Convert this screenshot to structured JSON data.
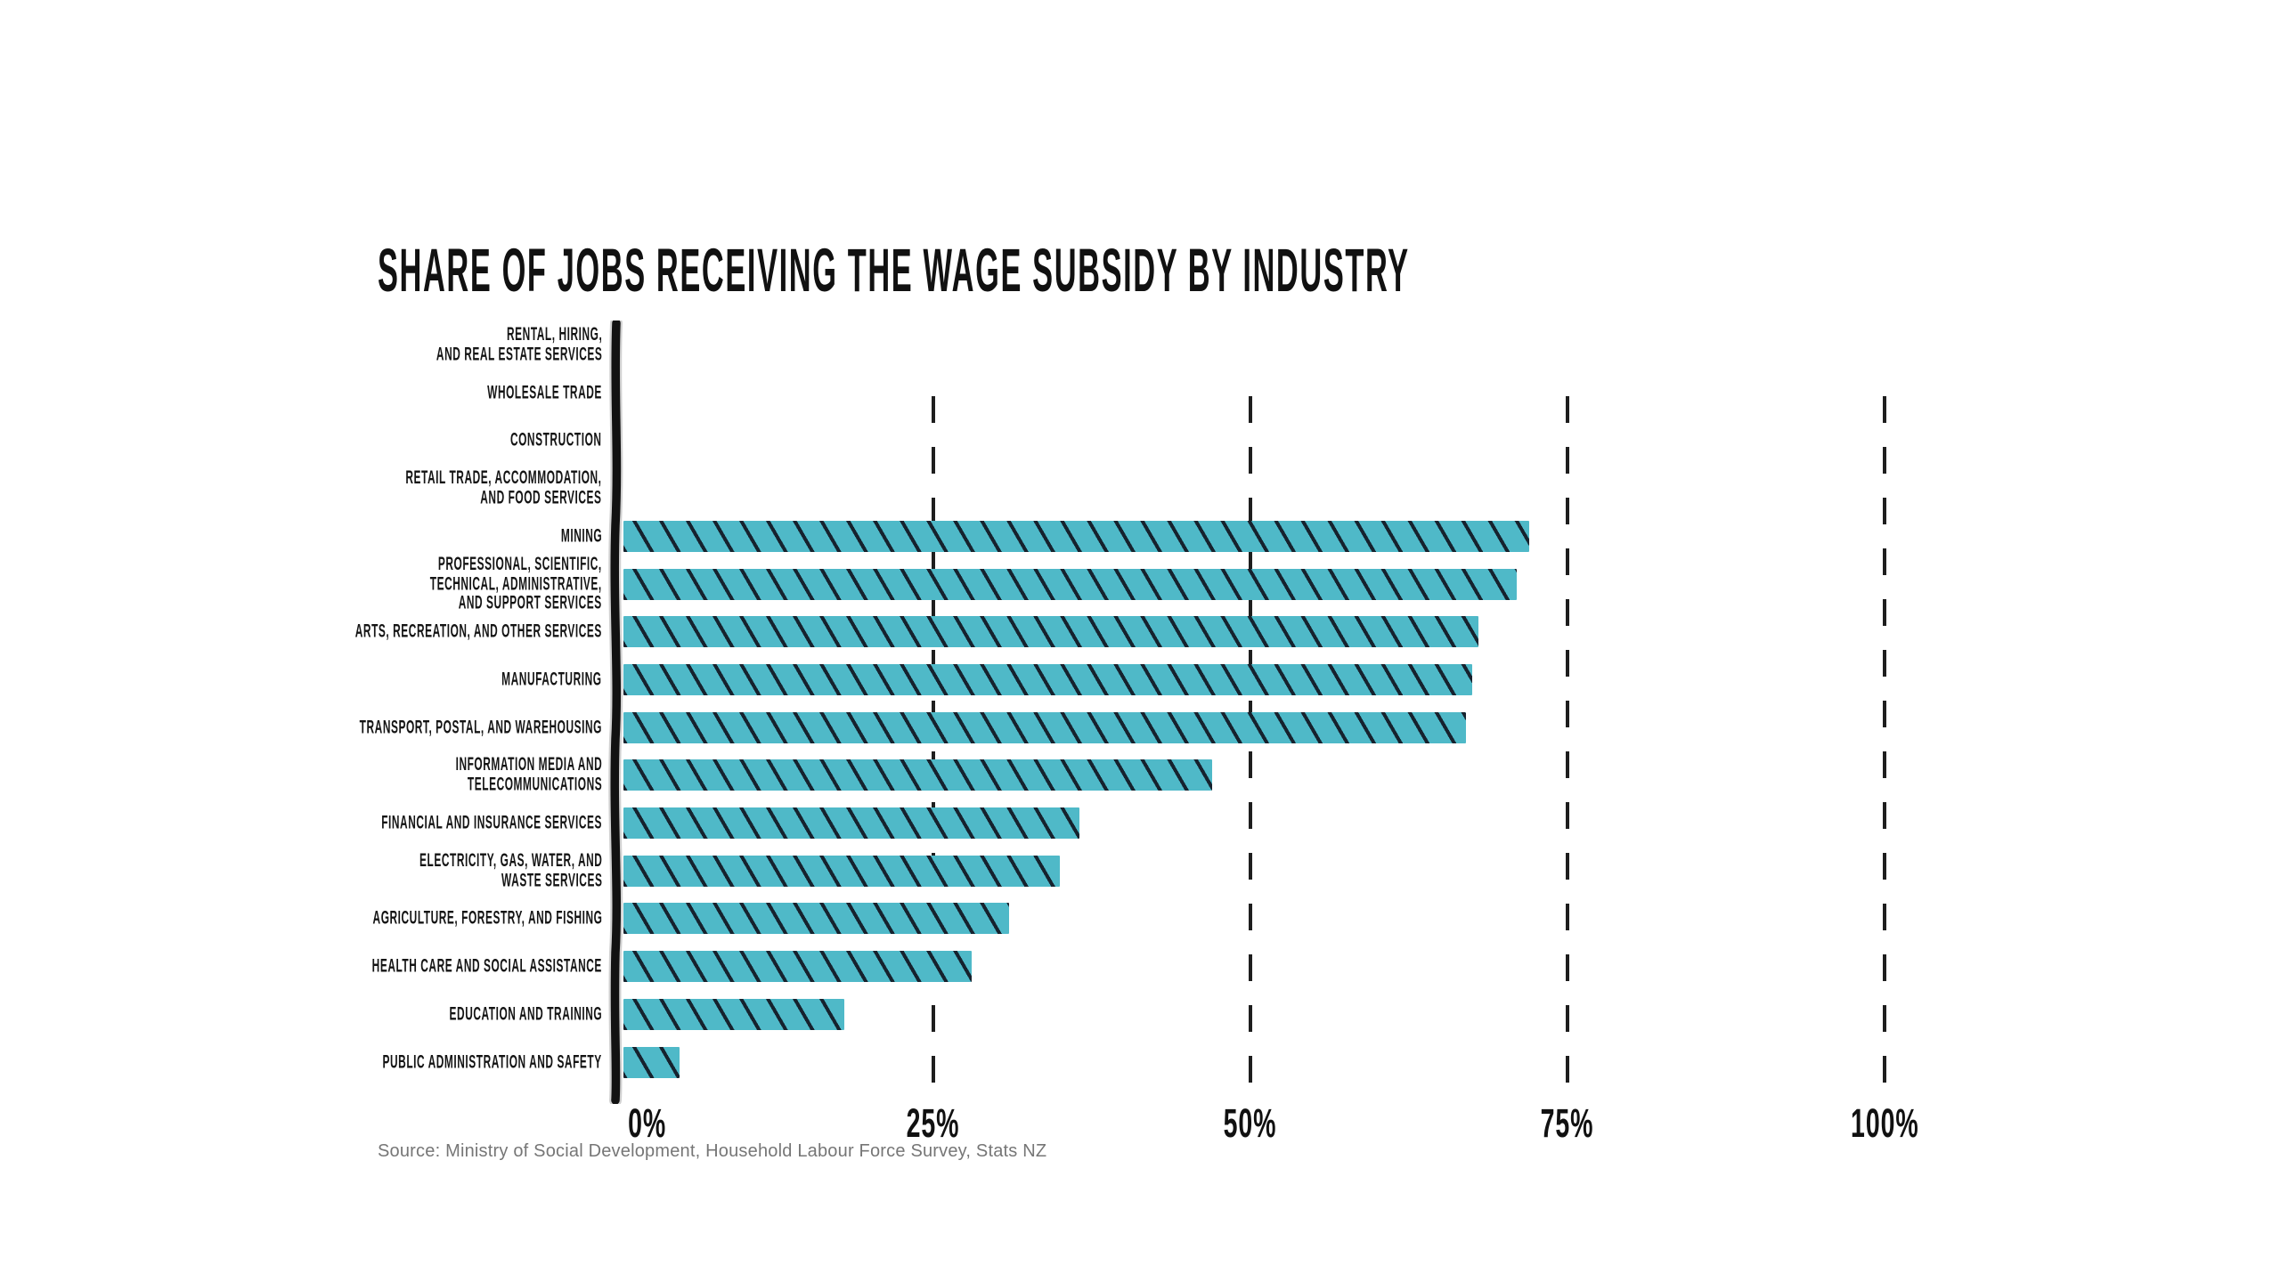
{
  "title": "SHARE OF JOBS RECEIVING THE WAGE SUBSIDY BY INDUSTRY",
  "source_note": "Source: Ministry of Social Development, Household Labour Force Survey, Stats NZ",
  "colors": {
    "background": "#ffffff",
    "bar_fill": "#4fb9c8",
    "bar_hatch": "#16222e",
    "axis_line": "#141414",
    "gridline": "#1e1e1e",
    "label_text": "#141414",
    "source_text": "#767676"
  },
  "chart_data": {
    "type": "bar",
    "orientation": "horizontal",
    "title": "SHARE OF JOBS RECEIVING THE WAGE SUBSIDY BY INDUSTRY",
    "xlabel": "",
    "ylabel": "",
    "unit": "% of jobs",
    "xlim": [
      0,
      100
    ],
    "x_tick_labels": [
      "0%",
      "25%",
      "50%",
      "75%",
      "100%"
    ],
    "x_tick_values": [
      0,
      25,
      50,
      75,
      100
    ],
    "grid": "vertical dashed lines at 25%, 50%, 75% and 100%; hand-drawn solid y-axis at 0%",
    "legend_position": "none",
    "bar_style": "teal fill with dark diagonal hatch lines",
    "categories": [
      "RENTAL, HIRING, AND REAL ESTATE SERVICES",
      "WHOLESALE TRADE",
      "CONSTRUCTION",
      "RETAIL TRADE, ACCOMMODATION, AND FOOD SERVICES",
      "MINING",
      "PROFESSIONAL, SCIENTIFIC, TECHNICAL, ADMINISTRATIVE, AND SUPPORT SERVICES",
      "ARTS, RECREATION, AND OTHER SERVICES",
      "MANUFACTURING",
      "TRANSPORT, POSTAL, AND WAREHOUSING",
      "INFORMATION MEDIA AND TELECOMMUNICATIONS",
      "FINANCIAL AND INSURANCE SERVICES",
      "ELECTRICITY, GAS, WATER, AND WASTE SERVICES",
      "AGRICULTURE, FORESTRY, AND FISHING",
      "HEALTH CARE AND SOCIAL ASSISTANCE",
      "EDUCATION AND TRAINING",
      "PUBLIC ADMINISTRATION AND SAFETY"
    ],
    "label_lines": [
      [
        "RENTAL, HIRING,",
        "AND REAL ESTATE SERVICES"
      ],
      [
        "WHOLESALE TRADE"
      ],
      [
        "CONSTRUCTION"
      ],
      [
        "RETAIL TRADE, ACCOMMODATION,",
        "AND FOOD SERVICES"
      ],
      [
        "MINING"
      ],
      [
        "PROFESSIONAL, SCIENTIFIC,",
        "TECHNICAL, ADMINISTRATIVE,",
        "AND SUPPORT SERVICES"
      ],
      [
        "ARTS, RECREATION, AND OTHER SERVICES"
      ],
      [
        "MANUFACTURING"
      ],
      [
        "TRANSPORT, POSTAL, AND WAREHOUSING"
      ],
      [
        "INFORMATION MEDIA AND",
        "TELECOMMUNICATIONS"
      ],
      [
        "FINANCIAL AND INSURANCE SERVICES"
      ],
      [
        "ELECTRICITY, GAS, WATER, AND",
        "WASTE SERVICES"
      ],
      [
        "AGRICULTURE, FORESTRY, AND FISHING"
      ],
      [
        "HEALTH CARE AND SOCIAL ASSISTANCE"
      ],
      [
        "EDUCATION AND TRAINING"
      ],
      [
        "PUBLIC ADMINISTRATION AND SAFETY"
      ]
    ],
    "values": [
      null,
      null,
      null,
      null,
      72,
      71,
      68,
      67.5,
      67,
      47,
      36.5,
      35,
      31,
      28,
      18,
      5
    ]
  }
}
